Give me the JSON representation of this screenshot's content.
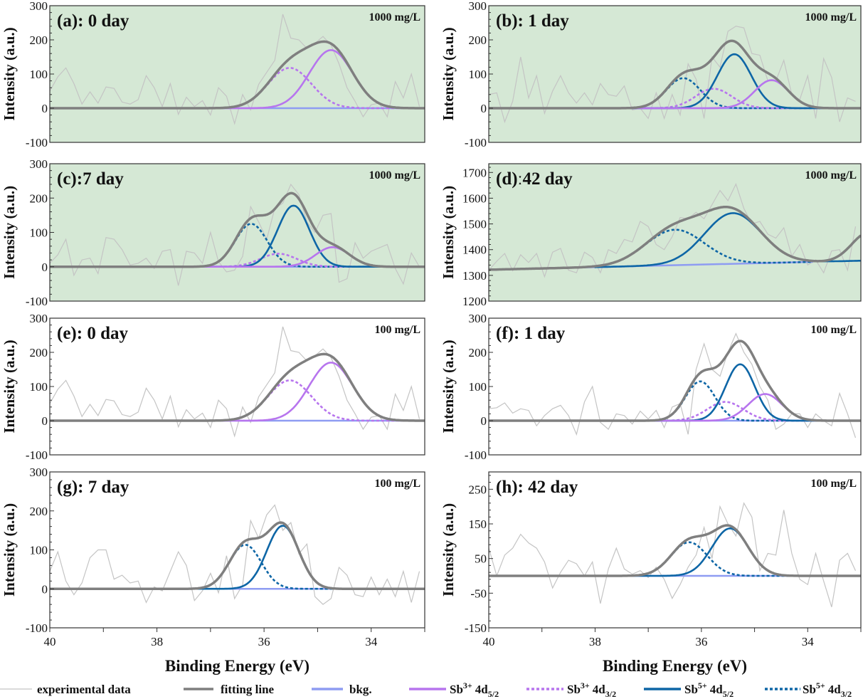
{
  "chart_data": {
    "type": "line",
    "xlabel": "Binding Energy (eV)",
    "ylabel": "Intensity (a.u.)",
    "xlim": [
      40,
      33.0
    ],
    "x_ticks": [
      40,
      38,
      36,
      34
    ],
    "experimental_x": {
      "start": 40,
      "step": -0.15,
      "count": 47
    },
    "colors": {
      "experimental": "#c4c4c4",
      "fit": "#7f7f7f",
      "bkg": "#8e9cf2",
      "sb3": "#b775ee",
      "sb5": "#0e66a6",
      "panel_bg_1000": "#d5e8d5",
      "panel_bg_100": "#ffffff"
    },
    "legend": [
      {
        "key": "experimental",
        "label": "experimental data"
      },
      {
        "key": "fit",
        "label": "fitting line"
      },
      {
        "key": "bkg",
        "label": "bkg."
      },
      {
        "key": "sb3_52",
        "ion": "Sb",
        "charge": "3+",
        "orbital": "4d",
        "j": "5/2"
      },
      {
        "key": "sb3_32",
        "ion": "Sb",
        "charge": "3+",
        "orbital": "4d",
        "j": "3/2"
      },
      {
        "key": "sb5_52",
        "ion": "Sb",
        "charge": "5+",
        "orbital": "4d",
        "j": "5/2"
      },
      {
        "key": "sb5_32",
        "ion": "Sb",
        "charge": "5+",
        "orbital": "4d",
        "j": "3/2"
      }
    ],
    "panels": [
      {
        "id": "a",
        "title": "(a): 0 day",
        "concentration": "1000 mg/L",
        "ylim": [
          -100,
          300
        ],
        "y_ticks": [
          300,
          200,
          100,
          0,
          -100
        ],
        "baseline": [
          0,
          0
        ],
        "components": [
          {
            "key": "sb3_32",
            "center": 35.52,
            "height": 118,
            "fwhm": 0.95
          },
          {
            "key": "sb3_52",
            "center": 34.75,
            "height": 170,
            "fwhm": 0.95
          }
        ],
        "experimental": [
          50,
          92,
          118,
          72,
          12,
          48,
          15,
          62,
          58,
          18,
          12,
          25,
          95,
          60,
          5,
          72,
          -18,
          32,
          5,
          22,
          -20,
          60,
          35,
          -45,
          40,
          -5,
          70,
          105,
          140,
          275,
          205,
          200,
          175,
          190,
          210,
          185,
          130,
          60,
          20,
          -25,
          10,
          15,
          -25,
          78,
          30,
          100,
          5
        ]
      },
      {
        "id": "b",
        "title": "(b): 1 day",
        "concentration": "1000 mg/L",
        "ylim": [
          -100,
          300
        ],
        "y_ticks": [
          300,
          200,
          100,
          0,
          -100
        ],
        "baseline": [
          0,
          0
        ],
        "components": [
          {
            "key": "sb5_32",
            "center": 36.34,
            "height": 88,
            "fwhm": 0.75
          },
          {
            "key": "sb3_32",
            "center": 35.77,
            "height": 57,
            "fwhm": 0.8
          },
          {
            "key": "sb5_52",
            "center": 35.38,
            "height": 158,
            "fwhm": 0.75
          },
          {
            "key": "sb3_52",
            "center": 34.68,
            "height": 82,
            "fwhm": 0.75
          }
        ],
        "experimental": [
          40,
          45,
          -40,
          20,
          150,
          30,
          95,
          -15,
          50,
          95,
          45,
          15,
          45,
          10,
          72,
          40,
          35,
          65,
          -5,
          0,
          -30,
          45,
          -30,
          40,
          -20,
          130,
          85,
          -30,
          150,
          120,
          225,
          240,
          235,
          160,
          155,
          80,
          80,
          140,
          40,
          25,
          95,
          -30,
          145,
          90,
          -40,
          30,
          20
        ]
      },
      {
        "id": "c",
        "title": "(c):7 day",
        "concentration": "1000 mg/L",
        "ylim": [
          -100,
          300
        ],
        "y_ticks": [
          300,
          200,
          100,
          0,
          -100
        ],
        "baseline": [
          0,
          0
        ],
        "components": [
          {
            "key": "sb5_32",
            "center": 36.24,
            "height": 125,
            "fwhm": 0.7
          },
          {
            "key": "sb3_32",
            "center": 35.73,
            "height": 38,
            "fwhm": 0.8
          },
          {
            "key": "sb5_52",
            "center": 35.45,
            "height": 178,
            "fwhm": 0.7
          },
          {
            "key": "sb3_52",
            "center": 34.72,
            "height": 57,
            "fwhm": 0.75
          }
        ],
        "experimental": [
          10,
          35,
          80,
          -25,
          20,
          25,
          -20,
          85,
          80,
          50,
          5,
          10,
          25,
          -5,
          45,
          50,
          -55,
          45,
          40,
          10,
          100,
          15,
          -15,
          -10,
          30,
          175,
          130,
          80,
          170,
          185,
          240,
          210,
          130,
          100,
          150,
          155,
          -45,
          -35,
          70,
          25,
          45,
          55,
          65,
          -5,
          -50,
          40,
          0
        ]
      },
      {
        "id": "d",
        "title": "(d)ː42 day",
        "concentration": "1000 mg/L",
        "ylim": [
          1200,
          1734
        ],
        "y_ticks": [
          1700,
          1600,
          1500,
          1400,
          1300,
          1200
        ],
        "baseline": [
          1322,
          1352
        ],
        "baseline_end": 33.9,
        "components": [
          {
            "key": "sb5_32",
            "center": 36.5,
            "height": 138,
            "fwhm": 1.3
          },
          {
            "key": "sb5_52",
            "center": 35.41,
            "height": 197,
            "fwhm": 1.25
          }
        ],
        "fit_tail": {
          "center": 32.85,
          "height": 115,
          "fwhm": 0.75
        },
        "experimental": [
          1320,
          1355,
          1385,
          1318,
          1380,
          1350,
          1385,
          1295,
          1390,
          1405,
          1320,
          1310,
          1390,
          1370,
          1310,
          1400,
          1385,
          1440,
          1430,
          1510,
          1490,
          1420,
          1400,
          1450,
          1525,
          1520,
          1545,
          1520,
          1575,
          1630,
          1590,
          1655,
          1560,
          1500,
          1510,
          1460,
          1445,
          1485,
          1375,
          1420,
          1340,
          1360,
          1310,
          1395,
          1400,
          1320,
          1490
        ]
      },
      {
        "id": "e",
        "title": "(e): 0 day",
        "concentration": "100 mg/L",
        "ylim": [
          -100,
          300
        ],
        "y_ticks": [
          300,
          200,
          100,
          0,
          -100
        ],
        "baseline": [
          0,
          0
        ],
        "components": [
          {
            "key": "sb3_32",
            "center": 35.52,
            "height": 118,
            "fwhm": 0.95
          },
          {
            "key": "sb3_52",
            "center": 34.75,
            "height": 170,
            "fwhm": 0.95
          }
        ],
        "experimental": [
          50,
          92,
          118,
          72,
          12,
          48,
          15,
          62,
          58,
          18,
          12,
          25,
          95,
          60,
          5,
          72,
          -18,
          32,
          5,
          22,
          -20,
          60,
          35,
          -45,
          40,
          -5,
          70,
          105,
          140,
          275,
          205,
          200,
          175,
          190,
          210,
          185,
          130,
          60,
          20,
          -25,
          10,
          15,
          -25,
          78,
          30,
          100,
          5
        ]
      },
      {
        "id": "f",
        "title": "(f): 1 day",
        "concentration": "100 mg/L",
        "ylim": [
          -100,
          300
        ],
        "y_ticks": [
          300,
          200,
          100,
          0,
          -100
        ],
        "baseline": [
          0,
          0
        ],
        "components": [
          {
            "key": "sb5_32",
            "center": 36.02,
            "height": 115,
            "fwhm": 0.65
          },
          {
            "key": "sb3_32",
            "center": 35.55,
            "height": 55,
            "fwhm": 0.8
          },
          {
            "key": "sb5_52",
            "center": 35.27,
            "height": 165,
            "fwhm": 0.65
          },
          {
            "key": "sb3_52",
            "center": 34.8,
            "height": 78,
            "fwhm": 0.75
          }
        ],
        "experimental": [
          35,
          38,
          52,
          22,
          35,
          30,
          -15,
          15,
          35,
          45,
          15,
          -40,
          55,
          100,
          -5,
          -25,
          20,
          15,
          -10,
          28,
          5,
          30,
          -20,
          40,
          50,
          -40,
          150,
          225,
          150,
          130,
          200,
          255,
          200,
          165,
          100,
          60,
          -25,
          -10,
          20,
          20,
          -20,
          20,
          0,
          -15,
          80,
          20,
          -50
        ]
      },
      {
        "id": "g",
        "title": "(g): 7 day",
        "concentration": "100 mg/L",
        "ylim": [
          -100,
          300
        ],
        "y_ticks": [
          300,
          200,
          100,
          0,
          -100
        ],
        "baseline": [
          0,
          0
        ],
        "components": [
          {
            "key": "sb5_32",
            "center": 36.35,
            "height": 113,
            "fwhm": 0.7
          },
          {
            "key": "sb5_52",
            "center": 35.65,
            "height": 162,
            "fwhm": 0.7
          }
        ],
        "experimental": [
          45,
          95,
          20,
          -15,
          15,
          80,
          100,
          100,
          25,
          35,
          15,
          20,
          -35,
          5,
          -5,
          45,
          95,
          60,
          -30,
          -5,
          40,
          -10,
          85,
          -25,
          10,
          175,
          130,
          190,
          215,
          150,
          170,
          90,
          115,
          -20,
          -40,
          -25,
          55,
          35,
          -15,
          -20,
          30,
          -15,
          25,
          -20,
          45,
          -35,
          45
        ]
      },
      {
        "id": "h",
        "title": "(h): 42 day",
        "concentration": "100 mg/L",
        "ylim": [
          -150,
          300
        ],
        "y_ticks": [
          250,
          150,
          50,
          -50,
          -150
        ],
        "baseline": [
          0,
          0
        ],
        "components": [
          {
            "key": "sb5_32",
            "center": 36.23,
            "height": 97,
            "fwhm": 0.8
          },
          {
            "key": "sb5_52",
            "center": 35.46,
            "height": 137,
            "fwhm": 0.8
          }
        ],
        "experimental": [
          80,
          0,
          60,
          80,
          120,
          95,
          80,
          40,
          -35,
          10,
          45,
          35,
          0,
          40,
          -80,
          20,
          80,
          20,
          5,
          15,
          -5,
          25,
          -10,
          -65,
          -25,
          25,
          60,
          140,
          50,
          200,
          150,
          115,
          210,
          170,
          15,
          65,
          60,
          190,
          65,
          -10,
          -25,
          65,
          -15,
          -90,
          45,
          65,
          15
        ]
      }
    ]
  }
}
